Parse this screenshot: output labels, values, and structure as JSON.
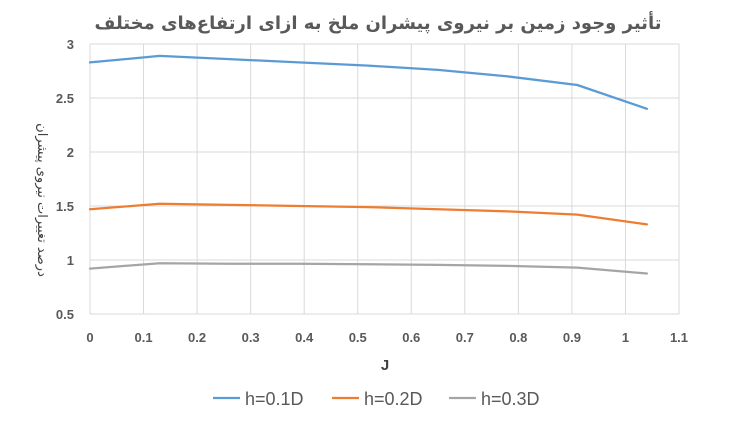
{
  "chart_data": {
    "type": "line",
    "title": "تأثیر وجود زمین بر نیروی پیشران ملخ به ازای ارتفاع‌های مختلف",
    "xlabel": "J",
    "ylabel": "درصد تغییرات نیروی پیشران",
    "xlim": [
      0,
      1.1
    ],
    "ylim": [
      0.5,
      3
    ],
    "xticks": [
      "0",
      "0.1",
      "0.2",
      "0.3",
      "0.4",
      "0.5",
      "0.6",
      "0.7",
      "0.8",
      "0.9",
      "1",
      "1.1"
    ],
    "yticks": [
      "0.5",
      "1",
      "1.5",
      "2",
      "2.5",
      "3"
    ],
    "grid": true,
    "legend": "bottom",
    "x": [
      0,
      0.13,
      0.26,
      0.39,
      0.52,
      0.65,
      0.78,
      0.91,
      1.04
    ],
    "series": [
      {
        "name": "h=0.1D",
        "color": "#5B9BD5",
        "values": [
          2.83,
          2.89,
          2.86,
          2.83,
          2.8,
          2.76,
          2.7,
          2.62,
          2.4
        ]
      },
      {
        "name": "h=0.2D",
        "color": "#ED7D31",
        "values": [
          1.47,
          1.52,
          1.51,
          1.5,
          1.49,
          1.47,
          1.45,
          1.42,
          1.33
        ]
      },
      {
        "name": "h=0.3D",
        "color": "#A5A5A5",
        "values": [
          0.92,
          0.97,
          0.965,
          0.965,
          0.96,
          0.955,
          0.945,
          0.93,
          0.875
        ]
      }
    ]
  }
}
